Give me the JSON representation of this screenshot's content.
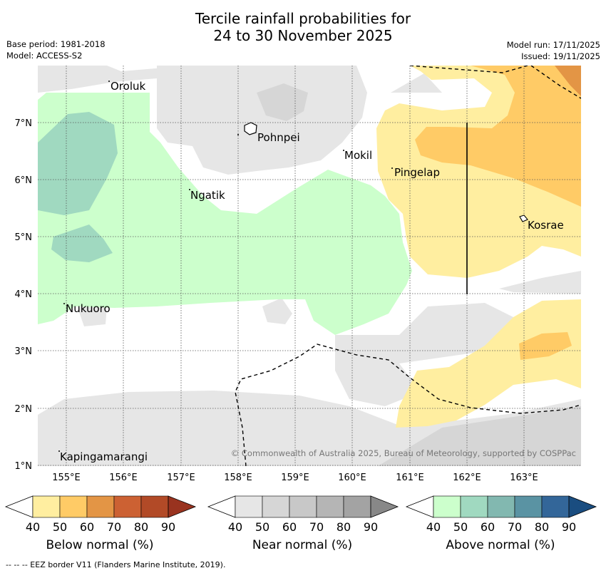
{
  "header": {
    "title_line1": "Tercile rainfall probabilities for",
    "title_line2": "24 to 30 November 2025",
    "base_period": "Base period: 1981-2018",
    "model": "Model: ACCESS-S2",
    "model_run": "Model run: 17/11/2025",
    "issued": "Issued: 19/11/2025"
  },
  "map": {
    "lon_ticks": [
      "155°E",
      "156°E",
      "157°E",
      "158°E",
      "159°E",
      "160°E",
      "161°E",
      "162°E",
      "163°E"
    ],
    "lat_ticks": [
      "7°N",
      "6°N",
      "5°N",
      "4°N",
      "3°N",
      "2°N",
      "1°N"
    ],
    "places": {
      "oroluk": "Oroluk",
      "pohnpei": "Pohnpei",
      "mokil": "Mokil",
      "pingelap": "Pingelap",
      "ngatik": "Ngatik",
      "kosrae": "Kosrae",
      "nukuoro": "Nukuoro",
      "kapingamarangi": "Kapingamarangi"
    },
    "copyright": "© Commonwealth of Australia 2025, Bureau of Meteorology, supported by COSPPac"
  },
  "legend": {
    "below": {
      "label": "Below normal (%)",
      "ticks": [
        "40",
        "50",
        "60",
        "70",
        "80",
        "90"
      ],
      "colors": [
        "#ffeea0",
        "#ffcb66",
        "#e39545",
        "#cc6133",
        "#b24a27",
        "#99331f"
      ]
    },
    "near": {
      "label": "Near normal (%)",
      "ticks": [
        "40",
        "50",
        "60",
        "70",
        "80",
        "90"
      ],
      "colors": [
        "#e6e6e6",
        "#d6d6d6",
        "#c8c8c8",
        "#b5b5b5",
        "#a3a3a3",
        "#888888"
      ]
    },
    "above": {
      "label": "Above normal (%)",
      "ticks": [
        "40",
        "50",
        "60",
        "70",
        "80",
        "90"
      ],
      "colors": [
        "#ccffcc",
        "#a0d9c0",
        "#82b8b0",
        "#5a93a3",
        "#336699",
        "#1a4d80"
      ]
    }
  },
  "footer": {
    "eez_note": "--  --  -- EEZ border V11 (Flanders Marine Institute, 2019)."
  }
}
